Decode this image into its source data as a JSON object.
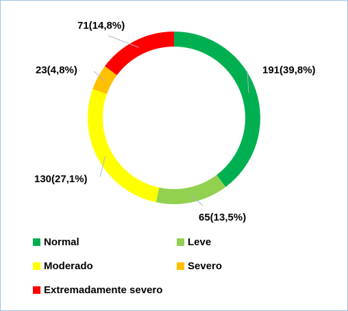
{
  "chart_data": {
    "type": "donut",
    "categories": [
      "Normal",
      "Leve",
      "Moderado",
      "Severo",
      "Extremadamente severo"
    ],
    "values": [
      191,
      65,
      130,
      23,
      71
    ],
    "value_labels": [
      "191(39,8%)",
      "65(13,5%)",
      "130(27,1%)",
      "23(4,8%)",
      "71(14,8%)"
    ],
    "colors": [
      "#00b050",
      "#92d050",
      "#ffff00",
      "#ffc000",
      "#ff0000"
    ],
    "legend": "bottom"
  }
}
